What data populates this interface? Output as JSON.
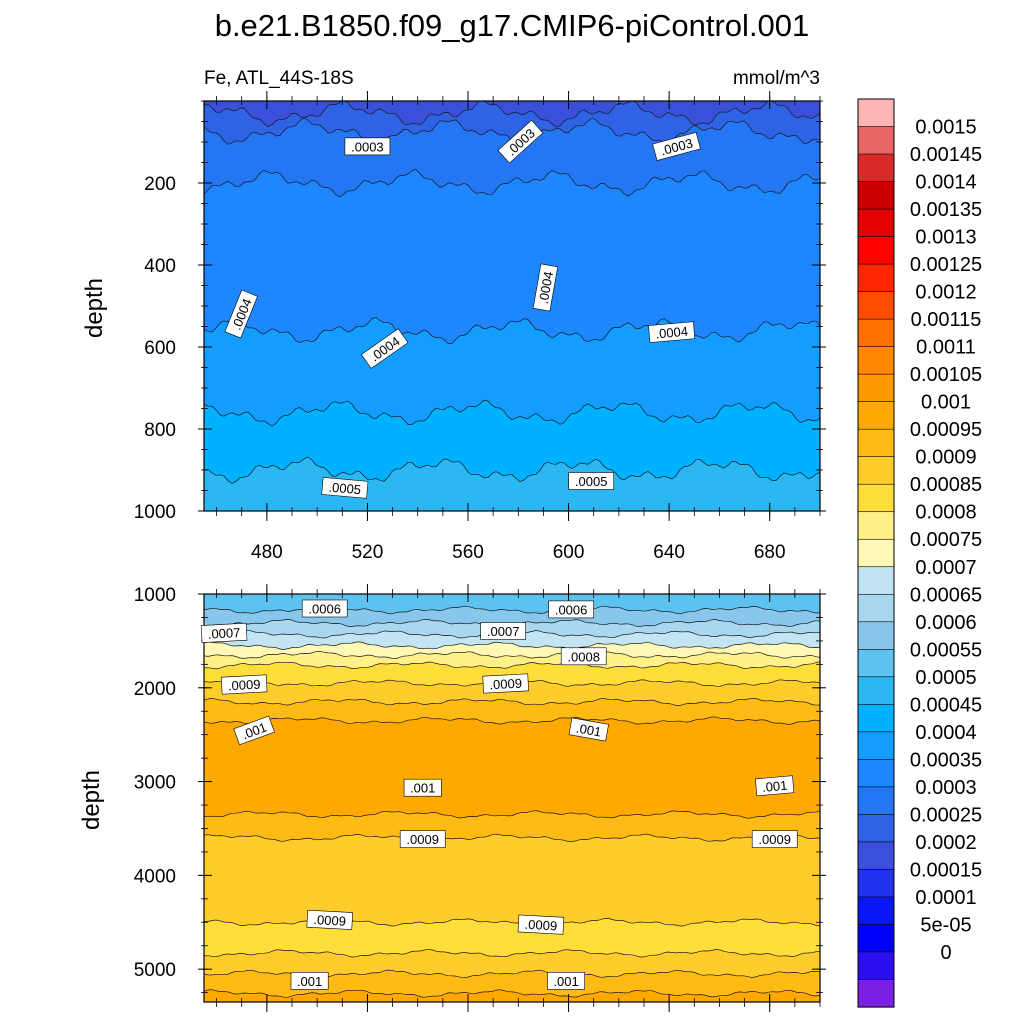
{
  "chart_data": {
    "type": "heatmap",
    "title": "b.e21.B1850.f09_g17.CMIP6-piControl.001",
    "variable_label": "Fe, ATL_44S-18S",
    "units_label": "mmol/m^3",
    "x": {
      "range": [
        455,
        700
      ],
      "ticks": [
        "480",
        "520",
        "560",
        "600",
        "640",
        "680"
      ],
      "tick_values": [
        480,
        520,
        560,
        600,
        640,
        680
      ]
    },
    "panels": [
      {
        "name": "upper",
        "ylabel": "depth",
        "y_range": [
          0,
          1000
        ],
        "yticks": [
          "200",
          "400",
          "600",
          "800",
          "1000"
        ],
        "ytick_values": [
          200,
          400,
          600,
          800,
          1000
        ],
        "levels": [
          {
            "value": 0.0002,
            "top_depth": 0
          },
          {
            "value": 0.00025,
            "top_depth": 30
          },
          {
            "value": 0.0003,
            "top_depth": 75
          },
          {
            "value": 0.00035,
            "top_depth": 200
          },
          {
            "value": 0.0004,
            "top_depth": 560
          },
          {
            "value": 0.00045,
            "top_depth": 760
          },
          {
            "value": 0.0005,
            "top_depth": 900
          }
        ],
        "contour_labels": [
          {
            "text": ".0003",
            "x": 520,
            "depth": 112,
            "angle": 0
          },
          {
            "text": ".0003",
            "x": 581,
            "depth": 100,
            "angle": -42
          },
          {
            "text": ".0003",
            "x": 643,
            "depth": 112,
            "angle": -15
          },
          {
            "text": ".0004",
            "x": 470,
            "depth": 520,
            "angle": -68
          },
          {
            "text": ".0004",
            "x": 527,
            "depth": 605,
            "angle": -35
          },
          {
            "text": ".0004",
            "x": 591,
            "depth": 455,
            "angle": -80
          },
          {
            "text": ".0004",
            "x": 641,
            "depth": 565,
            "angle": -5
          },
          {
            "text": ".0005",
            "x": 511,
            "depth": 945,
            "angle": 5
          },
          {
            "text": ".0005",
            "x": 609,
            "depth": 928,
            "angle": 0
          }
        ]
      },
      {
        "name": "lower",
        "ylabel": "depth",
        "y_range": [
          1000,
          5350
        ],
        "yticks": [
          "1000",
          "2000",
          "3000",
          "4000",
          "5000"
        ],
        "ytick_values": [
          1000,
          2000,
          3000,
          4000,
          5000
        ],
        "levels": [
          {
            "value": 0.00055,
            "top_depth": 1000
          },
          {
            "value": 0.0006,
            "top_depth": 1170
          },
          {
            "value": 0.00065,
            "top_depth": 1310
          },
          {
            "value": 0.0007,
            "top_depth": 1430
          },
          {
            "value": 0.00075,
            "top_depth": 1550
          },
          {
            "value": 0.0008,
            "top_depth": 1650
          },
          {
            "value": 0.00085,
            "top_depth": 1760
          },
          {
            "value": 0.0009,
            "top_depth": 1950
          },
          {
            "value": 0.00095,
            "top_depth": 2150
          },
          {
            "value": 0.001,
            "top_depth": 2350
          },
          {
            "value": 0.00095,
            "top_depth": 3350
          },
          {
            "value": 0.0009,
            "top_depth": 3600
          },
          {
            "value": 0.00085,
            "top_depth": 4500
          },
          {
            "value": 0.0009,
            "top_depth": 4830
          },
          {
            "value": 0.00095,
            "top_depth": 5050
          },
          {
            "value": 0.001,
            "top_depth": 5260
          }
        ],
        "contour_labels": [
          {
            "text": ".0006",
            "x": 503,
            "depth": 1160,
            "angle": 0
          },
          {
            "text": ".0006",
            "x": 601,
            "depth": 1170,
            "angle": 0
          },
          {
            "text": ".0007",
            "x": 463,
            "depth": 1420,
            "angle": -3
          },
          {
            "text": ".0007",
            "x": 574,
            "depth": 1400,
            "angle": 0
          },
          {
            "text": ".0008",
            "x": 606,
            "depth": 1670,
            "angle": 0
          },
          {
            "text": ".0009",
            "x": 471,
            "depth": 1970,
            "angle": -3
          },
          {
            "text": ".0009",
            "x": 575,
            "depth": 1960,
            "angle": -3
          },
          {
            "text": ".001",
            "x": 475,
            "depth": 2460,
            "angle": -20
          },
          {
            "text": ".001",
            "x": 608,
            "depth": 2450,
            "angle": 10
          },
          {
            "text": ".001",
            "x": 542,
            "depth": 3070,
            "angle": 0
          },
          {
            "text": ".001",
            "x": 682,
            "depth": 3050,
            "angle": -5
          },
          {
            "text": ".0009",
            "x": 542,
            "depth": 3620,
            "angle": 0
          },
          {
            "text": ".0009",
            "x": 682,
            "depth": 3620,
            "angle": 0
          },
          {
            "text": ".0009",
            "x": 505,
            "depth": 4480,
            "angle": 3
          },
          {
            "text": ".0009",
            "x": 589,
            "depth": 4530,
            "angle": 3
          },
          {
            "text": ".001",
            "x": 497,
            "depth": 5130,
            "angle": 0
          },
          {
            "text": ".001",
            "x": 599,
            "depth": 5130,
            "angle": 0
          }
        ]
      }
    ],
    "colorbar": {
      "colors": [
        "#ffb5b5",
        "#e66565",
        "#d92a2a",
        "#cc0000",
        "#e30000",
        "#ff0000",
        "#ff2600",
        "#ff4d00",
        "#ff7000",
        "#ff8800",
        "#ff9900",
        "#ffa800",
        "#ffbb13",
        "#ffcc2b",
        "#ffdd3b",
        "#fff088",
        "#fff8b6",
        "#c3e5f3",
        "#a8d7ef",
        "#88c6ec",
        "#5ec2f0",
        "#2bb8f2",
        "#00b1ff",
        "#129dff",
        "#1e87ff",
        "#2476f2",
        "#2f63e6",
        "#3a50da",
        "#2233ee",
        "#0a16f5",
        "#0000ff",
        "#2c10f0",
        "#7b1fe3"
      ],
      "labels": [
        "0.0015",
        "0.00145",
        "0.0014",
        "0.00135",
        "0.0013",
        "0.00125",
        "0.0012",
        "0.00115",
        "0.0011",
        "0.00105",
        "0.001",
        "0.00095",
        "0.0009",
        "0.00085",
        "0.0008",
        "0.00075",
        "0.0007",
        "0.00065",
        "0.0006",
        "0.00055",
        "0.0005",
        "0.00045",
        "0.0004",
        "0.00035",
        "0.0003",
        "0.00025",
        "0.0002",
        "0.00015",
        "0.0001",
        "5e-05",
        "0"
      ],
      "level_colors": {
        "0.0002": "#3a50da",
        "0.00025": "#2f63e6",
        "0.0003": "#2476f2",
        "0.00035": "#1e87ff",
        "0.0004": "#129dff",
        "0.00045": "#00b1ff",
        "0.0005": "#2bb8f2",
        "0.00055": "#5ec2f0",
        "0.0006": "#88c6ec",
        "0.00065": "#a8d7ef",
        "0.0007": "#c3e5f3",
        "0.00075": "#fff8b6",
        "0.0008": "#fff088",
        "0.00085": "#ffdd3b",
        "0.0009": "#ffcc2b",
        "0.00095": "#ffbb13",
        "0.001": "#ffa800"
      }
    }
  }
}
